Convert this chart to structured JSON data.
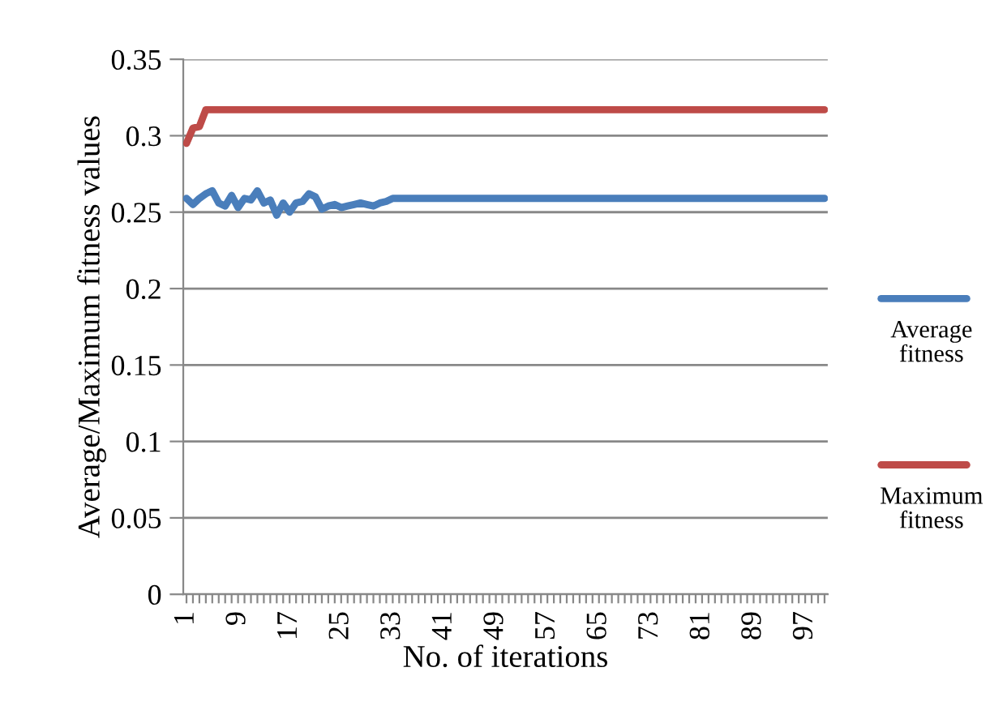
{
  "chart_data": {
    "type": "line",
    "xlabel": "No. of iterations",
    "ylabel": "Average/Maximum fitness values",
    "categories": [
      "1",
      null,
      null,
      null,
      null,
      null,
      null,
      null,
      "9",
      null,
      null,
      null,
      null,
      null,
      null,
      null,
      "17",
      null,
      null,
      null,
      null,
      null,
      null,
      null,
      "25",
      null,
      null,
      null,
      null,
      null,
      null,
      null,
      "33",
      null,
      null,
      null,
      null,
      null,
      null,
      null,
      "41",
      null,
      null,
      null,
      null,
      null,
      null,
      null,
      "49",
      null,
      null,
      null,
      null,
      null,
      null,
      null,
      "57",
      null,
      null,
      null,
      null,
      null,
      null,
      null,
      "65",
      null,
      null,
      null,
      null,
      null,
      null,
      null,
      "73",
      null,
      null,
      null,
      null,
      null,
      null,
      null,
      "81",
      null,
      null,
      null,
      null,
      null,
      null,
      null,
      "89",
      null,
      null,
      null,
      null,
      null,
      null,
      null,
      "97",
      null,
      null,
      null
    ],
    "series": [
      {
        "name": "Average fitness",
        "color": "#4a7ebb",
        "values": [
          0.259,
          0.255,
          0.259,
          0.262,
          0.264,
          0.256,
          0.254,
          0.261,
          0.253,
          0.259,
          0.258,
          0.264,
          0.256,
          0.258,
          0.248,
          0.256,
          0.25,
          0.256,
          0.257,
          0.262,
          0.26,
          0.252,
          0.254,
          0.255,
          0.253,
          0.254,
          0.255,
          0.256,
          0.255,
          0.254,
          0.256,
          0.257,
          0.259,
          0.259,
          0.259,
          0.259,
          0.259,
          0.259,
          0.259,
          0.259,
          0.259,
          0.259,
          0.259,
          0.259,
          0.259,
          0.259,
          0.259,
          0.259,
          0.259,
          0.259,
          0.259,
          0.259,
          0.259,
          0.259,
          0.259,
          0.259,
          0.259,
          0.259,
          0.259,
          0.259,
          0.259,
          0.259,
          0.259,
          0.259,
          0.259,
          0.259,
          0.259,
          0.259,
          0.259,
          0.259,
          0.259,
          0.259,
          0.259,
          0.259,
          0.259,
          0.259,
          0.259,
          0.259,
          0.259,
          0.259,
          0.259,
          0.259,
          0.259,
          0.259,
          0.259,
          0.259,
          0.259,
          0.259,
          0.259,
          0.259,
          0.259,
          0.259,
          0.259,
          0.259,
          0.259,
          0.259,
          0.259,
          0.259,
          0.259,
          0.259
        ]
      },
      {
        "name": "Maximum fitness",
        "color": "#be4b48",
        "values": [
          0.295,
          0.305,
          0.306,
          0.317,
          0.317,
          0.317,
          0.317,
          0.317,
          0.317,
          0.317,
          0.317,
          0.317,
          0.317,
          0.317,
          0.317,
          0.317,
          0.317,
          0.317,
          0.317,
          0.317,
          0.317,
          0.317,
          0.317,
          0.317,
          0.317,
          0.317,
          0.317,
          0.317,
          0.317,
          0.317,
          0.317,
          0.317,
          0.317,
          0.317,
          0.317,
          0.317,
          0.317,
          0.317,
          0.317,
          0.317,
          0.317,
          0.317,
          0.317,
          0.317,
          0.317,
          0.317,
          0.317,
          0.317,
          0.317,
          0.317,
          0.317,
          0.317,
          0.317,
          0.317,
          0.317,
          0.317,
          0.317,
          0.317,
          0.317,
          0.317,
          0.317,
          0.317,
          0.317,
          0.317,
          0.317,
          0.317,
          0.317,
          0.317,
          0.317,
          0.317,
          0.317,
          0.317,
          0.317,
          0.317,
          0.317,
          0.317,
          0.317,
          0.317,
          0.317,
          0.317,
          0.317,
          0.317,
          0.317,
          0.317,
          0.317,
          0.317,
          0.317,
          0.317,
          0.317,
          0.317,
          0.317,
          0.317,
          0.317,
          0.317,
          0.317,
          0.317,
          0.317,
          0.317,
          0.317,
          0.317
        ]
      }
    ],
    "ylim": [
      0,
      0.35
    ],
    "yticks": [
      0,
      {
        "value": 0.05,
        "label": "0.05"
      },
      {
        "value": 0.1,
        "label": "0.1"
      },
      {
        "value": 0.15,
        "label": "0.15"
      },
      {
        "value": 0.2,
        "label": "0.2"
      },
      {
        "value": 0.25,
        "label": "0.25"
      },
      {
        "value": 0.3,
        "label": "0.3"
      },
      {
        "value": 0.35,
        "label": "0.35"
      }
    ],
    "grid": "y",
    "legend": "right",
    "marker": "none",
    "line_style": "solid"
  }
}
